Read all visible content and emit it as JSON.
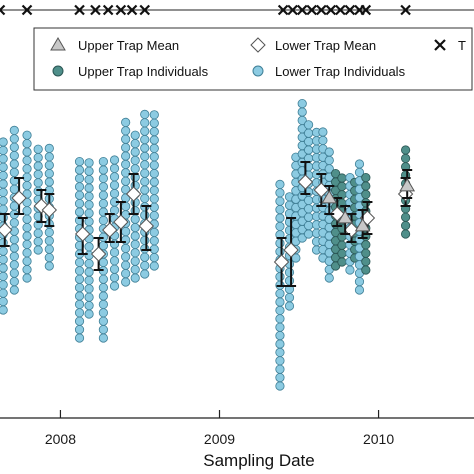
{
  "chart_data": {
    "type": "scatter",
    "xlabel": "Sampling Date",
    "x_ticks": [
      "2008",
      "2009",
      "2010"
    ],
    "x_tick_values": [
      2008,
      2009,
      2010
    ],
    "xlim": [
      2007.62,
      2010.6
    ],
    "ylim": [
      0,
      1
    ],
    "grid": false,
    "legend_position": "top",
    "legend": [
      {
        "label": "Upper Trap Mean",
        "symbol": "triangle"
      },
      {
        "label": "Lower Trap Mean",
        "symbol": "diamond"
      },
      {
        "label": "T",
        "symbol": "x"
      },
      {
        "label": "Upper Trap Individuals",
        "symbol": "circle-dark"
      },
      {
        "label": "Lower Trap Individuals",
        "symbol": "circle-light"
      }
    ],
    "x_markers": [
      2007.62,
      2007.79,
      2008.12,
      2008.22,
      2008.3,
      2008.38,
      2008.45,
      2008.53,
      2009.4,
      2009.46,
      2009.52,
      2009.58,
      2009.64,
      2009.7,
      2009.76,
      2009.82,
      2009.88,
      2009.92,
      2010.17
    ],
    "columns": [
      {
        "x": 2007.64,
        "min": 0.27,
        "max": 0.7,
        "trap": "lower"
      },
      {
        "x": 2007.71,
        "min": 0.32,
        "max": 0.73,
        "trap": "lower"
      },
      {
        "x": 2007.79,
        "min": 0.35,
        "max": 0.72,
        "trap": "lower"
      },
      {
        "x": 2007.86,
        "min": 0.42,
        "max": 0.69,
        "trap": "lower"
      },
      {
        "x": 2007.93,
        "min": 0.38,
        "max": 0.68,
        "trap": "lower"
      },
      {
        "x": 2008.12,
        "min": 0.2,
        "max": 0.66,
        "trap": "lower"
      },
      {
        "x": 2008.18,
        "min": 0.26,
        "max": 0.64,
        "trap": "lower"
      },
      {
        "x": 2008.27,
        "min": 0.2,
        "max": 0.65,
        "trap": "lower"
      },
      {
        "x": 2008.34,
        "min": 0.33,
        "max": 0.65,
        "trap": "lower"
      },
      {
        "x": 2008.41,
        "min": 0.34,
        "max": 0.75,
        "trap": "lower"
      },
      {
        "x": 2008.47,
        "min": 0.35,
        "max": 0.72,
        "trap": "lower"
      },
      {
        "x": 2008.53,
        "min": 0.36,
        "max": 0.77,
        "trap": "lower"
      },
      {
        "x": 2008.59,
        "min": 0.38,
        "max": 0.77,
        "trap": "lower"
      },
      {
        "x": 2009.38,
        "min": 0.08,
        "max": 0.59,
        "trap": "lower"
      },
      {
        "x": 2009.44,
        "min": 0.28,
        "max": 0.56,
        "trap": "lower"
      },
      {
        "x": 2009.48,
        "min": 0.4,
        "max": 0.66,
        "trap": "lower"
      },
      {
        "x": 2009.52,
        "min": 0.45,
        "max": 0.79,
        "trap": "lower"
      },
      {
        "x": 2009.56,
        "min": 0.46,
        "max": 0.74,
        "trap": "lower"
      },
      {
        "x": 2009.61,
        "min": 0.42,
        "max": 0.72,
        "trap": "lower"
      },
      {
        "x": 2009.65,
        "min": 0.4,
        "max": 0.72,
        "trap": "lower"
      },
      {
        "x": 2009.69,
        "min": 0.35,
        "max": 0.68,
        "trap": "lower"
      },
      {
        "x": 2009.73,
        "min": 0.38,
        "max": 0.63,
        "trap": "upper"
      },
      {
        "x": 2009.77,
        "min": 0.39,
        "max": 0.61,
        "trap": "upper"
      },
      {
        "x": 2009.82,
        "min": 0.37,
        "max": 0.62,
        "trap": "lower"
      },
      {
        "x": 2009.85,
        "min": 0.4,
        "max": 0.6,
        "trap": "upper"
      },
      {
        "x": 2009.88,
        "min": 0.32,
        "max": 0.65,
        "trap": "lower"
      },
      {
        "x": 2009.92,
        "min": 0.37,
        "max": 0.61,
        "trap": "upper"
      },
      {
        "x": 2010.17,
        "min": 0.46,
        "max": 0.68,
        "trap": "upper"
      }
    ],
    "series": [
      {
        "name": "Lower Trap Mean",
        "marker": "diamond",
        "points": [
          {
            "x": 2007.65,
            "y": 0.47,
            "lo": 0.43,
            "hi": 0.51
          },
          {
            "x": 2007.74,
            "y": 0.55,
            "lo": 0.51,
            "hi": 0.6
          },
          {
            "x": 2007.88,
            "y": 0.53,
            "lo": 0.49,
            "hi": 0.57
          },
          {
            "x": 2007.93,
            "y": 0.52,
            "lo": 0.48,
            "hi": 0.56
          },
          {
            "x": 2008.14,
            "y": 0.46,
            "lo": 0.41,
            "hi": 0.5
          },
          {
            "x": 2008.24,
            "y": 0.41,
            "lo": 0.37,
            "hi": 0.45
          },
          {
            "x": 2008.31,
            "y": 0.47,
            "lo": 0.44,
            "hi": 0.51
          },
          {
            "x": 2008.38,
            "y": 0.49,
            "lo": 0.44,
            "hi": 0.54
          },
          {
            "x": 2008.46,
            "y": 0.56,
            "lo": 0.51,
            "hi": 0.61
          },
          {
            "x": 2008.54,
            "y": 0.48,
            "lo": 0.42,
            "hi": 0.53
          },
          {
            "x": 2009.39,
            "y": 0.39,
            "lo": 0.33,
            "hi": 0.45
          },
          {
            "x": 2009.45,
            "y": 0.42,
            "lo": 0.33,
            "hi": 0.5
          },
          {
            "x": 2009.54,
            "y": 0.59,
            "lo": 0.56,
            "hi": 0.64
          },
          {
            "x": 2009.64,
            "y": 0.57,
            "lo": 0.53,
            "hi": 0.61
          },
          {
            "x": 2009.74,
            "y": 0.51,
            "lo": 0.48,
            "hi": 0.55
          },
          {
            "x": 2009.83,
            "y": 0.47,
            "lo": 0.44,
            "hi": 0.51
          },
          {
            "x": 2009.93,
            "y": 0.5,
            "lo": 0.46,
            "hi": 0.54
          },
          {
            "x": 2010.17,
            "y": 0.56,
            "lo": 0.53,
            "hi": 0.6
          }
        ]
      },
      {
        "name": "Upper Trap Mean",
        "marker": "triangle",
        "points": [
          {
            "x": 2009.69,
            "y": 0.55,
            "lo": 0.51,
            "hi": 0.58
          },
          {
            "x": 2009.79,
            "y": 0.5,
            "lo": 0.46,
            "hi": 0.53
          },
          {
            "x": 2009.9,
            "y": 0.48,
            "lo": 0.45,
            "hi": 0.52
          },
          {
            "x": 2010.18,
            "y": 0.58,
            "lo": 0.55,
            "hi": 0.62
          }
        ]
      }
    ]
  },
  "colors": {
    "lower_individual_fill": "#8ccbe2",
    "lower_individual_stroke": "#3f7f96",
    "upper_individual_fill": "#4f8f8a",
    "upper_individual_stroke": "#2a5553",
    "lower_mean_fill": "#ffffff",
    "upper_mean_fill": "#c8c8c8",
    "errorbar": "#111111",
    "axis": "#222222"
  }
}
